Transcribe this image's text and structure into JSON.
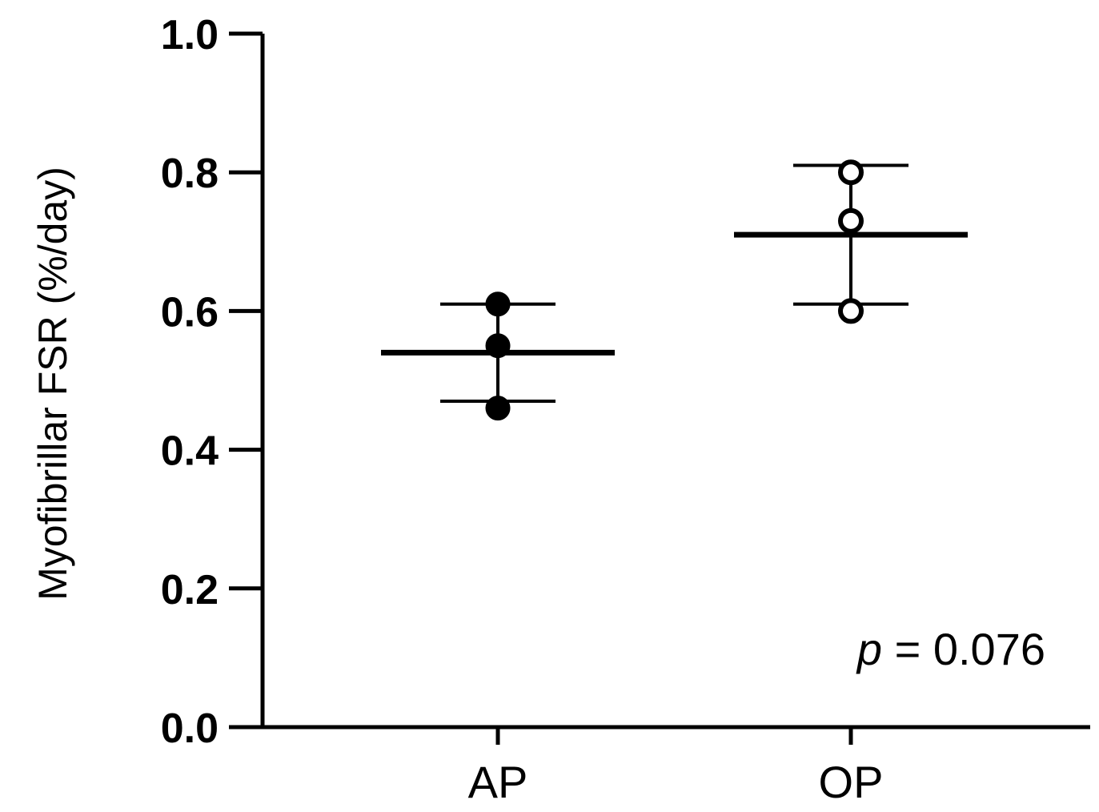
{
  "chart_data": {
    "type": "scatter",
    "title": "",
    "xlabel": "",
    "ylabel": "Myofibrillar FSR (%/day)",
    "ylim": [
      0.0,
      1.0
    ],
    "yticks": [
      "0.0",
      "0.2",
      "0.4",
      "0.6",
      "0.8",
      "1.0"
    ],
    "categories": [
      "AP",
      "OP"
    ],
    "grid": false,
    "groups": [
      {
        "category": "AP",
        "marker": "filled",
        "points": [
          0.61,
          0.55,
          0.46
        ],
        "mean": 0.54,
        "sd_upper": 0.61,
        "sd_lower": 0.47
      },
      {
        "category": "OP",
        "marker": "open",
        "points": [
          0.8,
          0.73,
          0.6
        ],
        "mean": 0.71,
        "sd_upper": 0.81,
        "sd_lower": 0.61
      }
    ],
    "annotation": {
      "p_symbol": "p",
      "text": " = 0.076"
    }
  }
}
